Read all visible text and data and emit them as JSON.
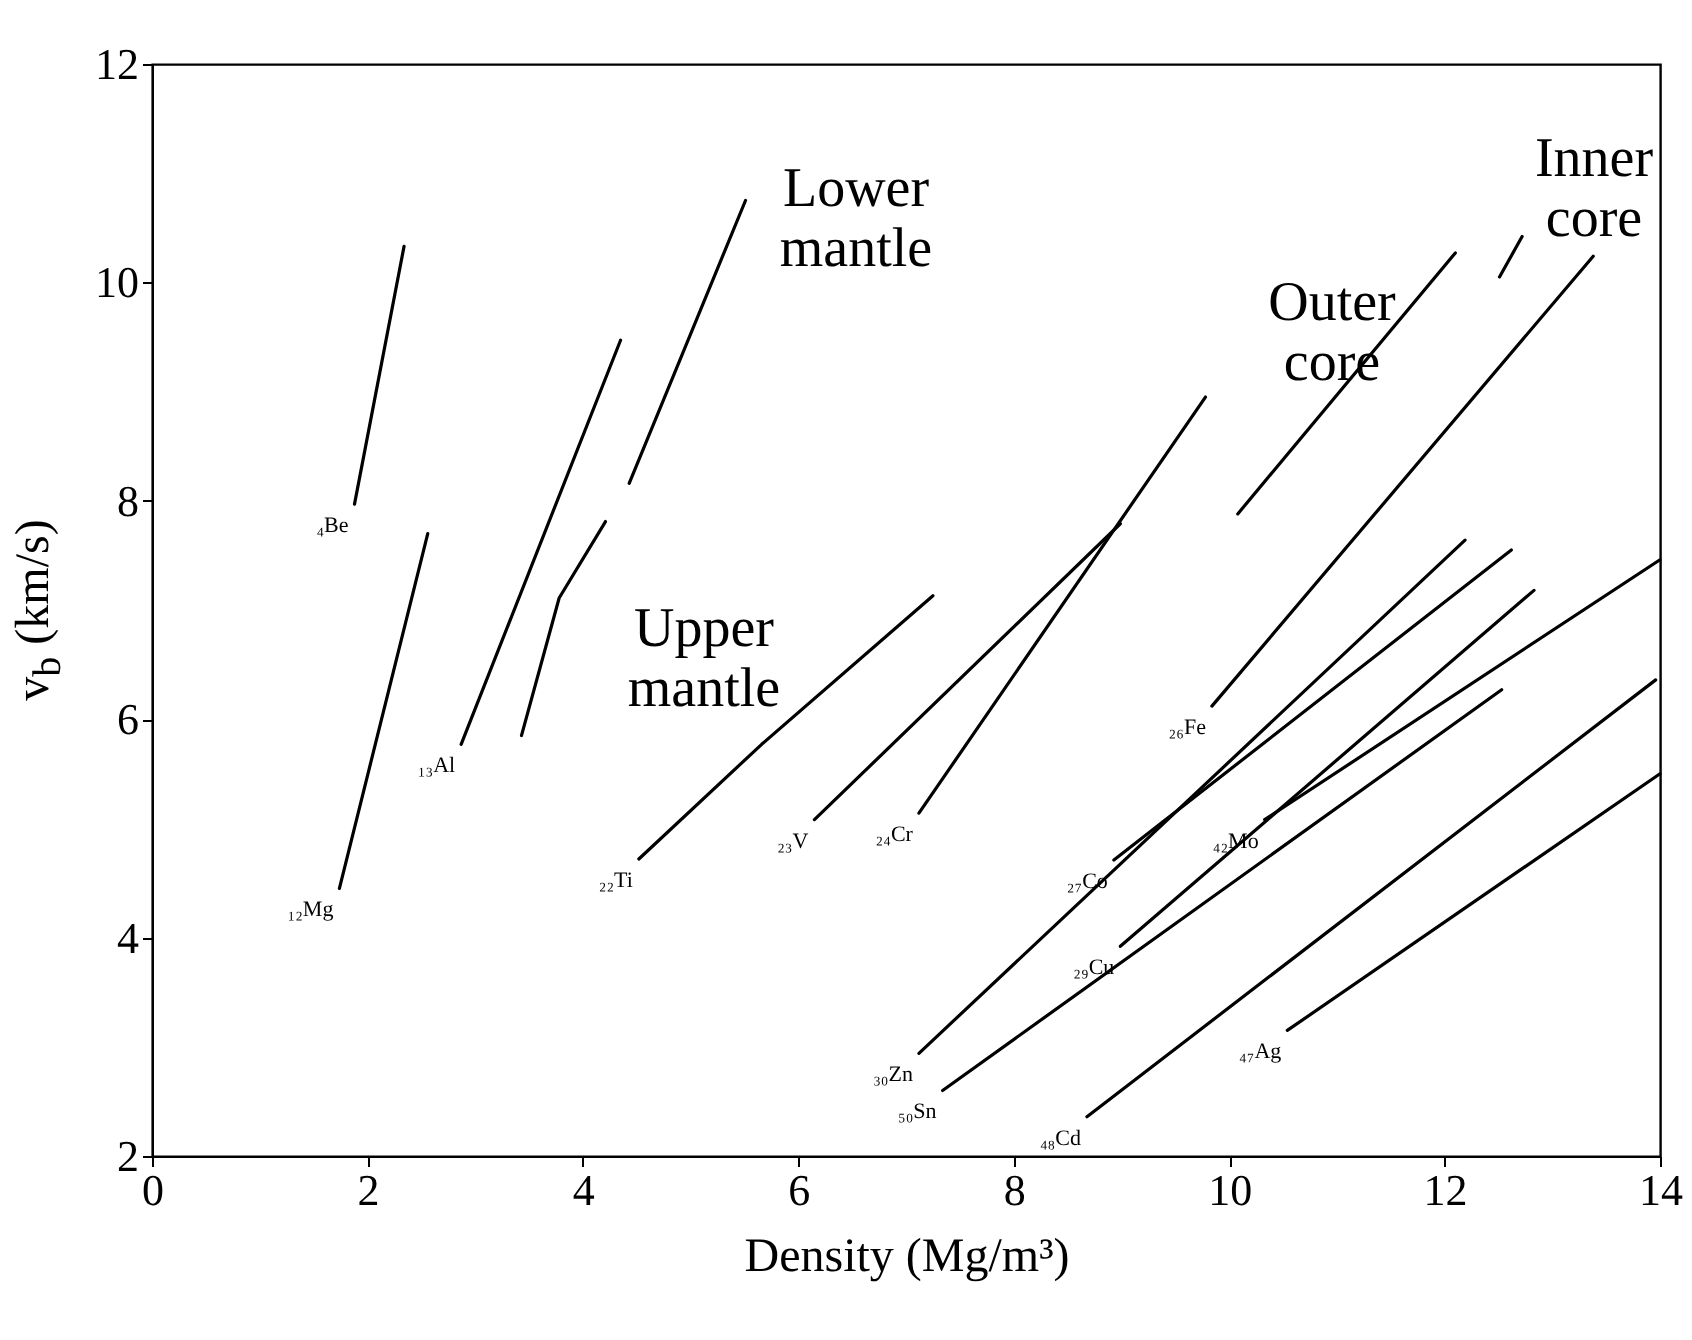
{
  "chart_data": {
    "type": "line",
    "xlabel": "Density (Mg/m³)",
    "ylabel": "v$_{b}$ (km/s)",
    "xlim": [
      0,
      14
    ],
    "xticks": [
      0,
      2,
      4,
      6,
      8,
      10,
      12,
      14
    ],
    "ylim": [
      2,
      12
    ],
    "yticks": [
      2,
      4,
      6,
      8,
      10,
      12
    ],
    "grid": false,
    "legend": false,
    "marker": "none",
    "line_style": "solid",
    "annotations": [
      "Lower mantle",
      "Upper mantle",
      "Outer core",
      "Inner core"
    ],
    "series": [
      {
        "name": "₄Be",
        "color": "#000000",
        "x": [
          1.88,
          2.34
        ],
        "values": [
          7.97,
          10.33
        ]
      },
      {
        "name": "₁₂Mg",
        "color": "#000000",
        "x": [
          1.74,
          2.56
        ],
        "values": [
          4.45,
          7.7
        ]
      },
      {
        "name": "₁₃Al",
        "color": "#000000",
        "x": [
          2.87,
          4.35
        ],
        "values": [
          5.77,
          9.47
        ]
      },
      {
        "name": "₂₂Ti",
        "color": "#000000",
        "x": [
          4.52,
          5.66,
          7.25
        ],
        "values": [
          4.72,
          5.77,
          7.13
        ]
      },
      {
        "name": "₂₃V",
        "color": "#000000",
        "x": [
          6.15,
          8.99
        ],
        "values": [
          5.08,
          7.79
        ]
      },
      {
        "name": "₂₄Cr",
        "color": "#000000",
        "x": [
          7.12,
          9.78
        ],
        "values": [
          5.14,
          8.95
        ]
      },
      {
        "name": "₂₆Fe",
        "color": "#000000",
        "x": [
          9.84,
          13.38
        ],
        "values": [
          6.12,
          10.24
        ]
      },
      {
        "name": "₂₇Co",
        "color": "#000000",
        "x": [
          8.93,
          12.62
        ],
        "values": [
          4.71,
          7.55
        ]
      },
      {
        "name": "₂₉Cu",
        "color": "#000000",
        "x": [
          8.99,
          12.83
        ],
        "values": [
          3.92,
          7.18
        ]
      },
      {
        "name": "₃₀Zn",
        "color": "#000000",
        "x": [
          7.12,
          12.19
        ],
        "values": [
          2.94,
          7.64
        ]
      },
      {
        "name": "₄₂Mo",
        "color": "#000000",
        "x": [
          10.33,
          14.0
        ],
        "values": [
          5.08,
          7.46
        ]
      },
      {
        "name": "₄₇Ag",
        "color": "#000000",
        "x": [
          10.54,
          14.0
        ],
        "values": [
          3.15,
          5.5
        ]
      },
      {
        "name": "₄₈Cd",
        "color": "#000000",
        "x": [
          8.68,
          13.96
        ],
        "values": [
          2.36,
          6.36
        ]
      },
      {
        "name": "₅₀Sn",
        "color": "#000000",
        "x": [
          7.34,
          12.53
        ],
        "values": [
          2.6,
          6.27
        ]
      },
      {
        "color": "#000000",
        "x": [
          3.43,
          3.78,
          4.21
        ],
        "values": [
          5.85,
          7.11,
          7.81
        ]
      },
      {
        "color": "#000000",
        "x": [
          4.43,
          5.51
        ],
        "values": [
          8.16,
          10.75
        ]
      },
      {
        "color": "#000000",
        "x": [
          10.08,
          12.1
        ],
        "values": [
          7.88,
          10.27
        ]
      },
      {
        "color": "#000000",
        "x": [
          12.51,
          12.72
        ],
        "values": [
          10.05,
          10.42
        ]
      }
    ]
  }
}
